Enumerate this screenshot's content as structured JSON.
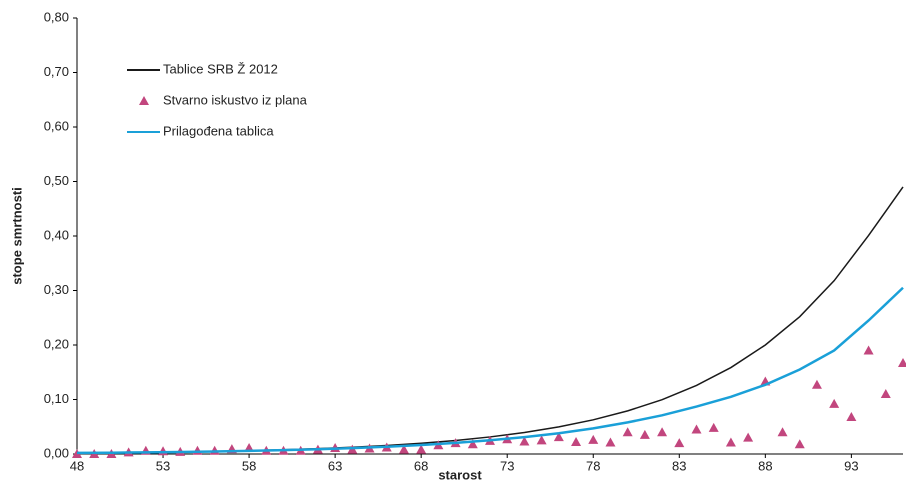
{
  "chart_data": {
    "type": "line",
    "x_label": "starost",
    "y_label": "stope smrtnosti",
    "xlim": [
      48,
      96
    ],
    "xticks": [
      48,
      53,
      58,
      63,
      68,
      73,
      78,
      83,
      88,
      93
    ],
    "ylim": [
      0,
      0.8
    ],
    "yticks": [
      {
        "value": 0,
        "label": "0,00"
      },
      {
        "value": 0.1,
        "label": "0,10"
      },
      {
        "value": 0.2,
        "label": "0,20"
      },
      {
        "value": 0.3,
        "label": "0,30"
      },
      {
        "value": 0.4,
        "label": "0,40"
      },
      {
        "value": 0.5,
        "label": "0,50"
      },
      {
        "value": 0.6,
        "label": "0,60"
      },
      {
        "value": 0.7,
        "label": "0,70"
      },
      {
        "value": 0.8,
        "label": "0,80"
      }
    ],
    "grid": false,
    "legend": "top-left",
    "series": [
      {
        "name": "Tablice SRB Ž 2012",
        "color": "#1a1a1a",
        "mark": "line",
        "x": [
          48,
          50,
          52,
          54,
          56,
          58,
          60,
          62,
          64,
          66,
          68,
          70,
          72,
          74,
          76,
          78,
          80,
          82,
          84,
          86,
          88,
          90,
          92,
          94,
          96
        ],
        "values": [
          0.002,
          0.0024,
          0.0031,
          0.0039,
          0.0049,
          0.0062,
          0.0078,
          0.0098,
          0.0124,
          0.0156,
          0.0197,
          0.0248,
          0.0313,
          0.0394,
          0.0497,
          0.0627,
          0.0791,
          0.0997,
          0.1259,
          0.1586,
          0.2,
          0.252,
          0.318,
          0.401,
          0.49
        ]
      },
      {
        "name": "Stvarno iskustvo iz plana",
        "color": "#c2467e",
        "mark": "triangle",
        "x": [
          48,
          49,
          50,
          51,
          52,
          53,
          54,
          55,
          56,
          57,
          58,
          59,
          60,
          61,
          62,
          63,
          64,
          65,
          66,
          67,
          68,
          69,
          70,
          71,
          72,
          73,
          74,
          75,
          76,
          77,
          78,
          79,
          80,
          81,
          82,
          83,
          84,
          85,
          86,
          87,
          88,
          89,
          90,
          91,
          92,
          93,
          94,
          95,
          96
        ],
        "values": [
          0,
          0,
          0,
          0.003,
          0.006,
          0.005,
          0.004,
          0.006,
          0.006,
          0.009,
          0.011,
          0.006,
          0.006,
          0.006,
          0.008,
          0.011,
          0.008,
          0.01,
          0.012,
          0.008,
          0.008,
          0.016,
          0.02,
          0.018,
          0.024,
          0.027,
          0.023,
          0.025,
          0.031,
          0.022,
          0.026,
          0.021,
          0.04,
          0.035,
          0.04,
          0.02,
          0.045,
          0.048,
          0.021,
          0.03,
          0.133,
          0.04,
          0.018,
          0.127,
          0.092,
          0.068,
          0.19,
          0.11,
          0.167
        ]
      },
      {
        "name": "Prilagođena tablica",
        "color": "#1aa0d8",
        "mark": "line",
        "x": [
          48,
          50,
          52,
          54,
          56,
          58,
          60,
          62,
          64,
          66,
          68,
          70,
          72,
          74,
          76,
          78,
          80,
          82,
          84,
          86,
          88,
          90,
          92,
          94,
          96
        ],
        "values": [
          0.002,
          0.0024,
          0.003,
          0.0037,
          0.0046,
          0.0057,
          0.007,
          0.0087,
          0.0108,
          0.0134,
          0.0165,
          0.0204,
          0.0252,
          0.031,
          0.038,
          0.047,
          0.058,
          0.071,
          0.087,
          0.105,
          0.127,
          0.155,
          0.19,
          0.245,
          0.305
        ]
      }
    ]
  }
}
